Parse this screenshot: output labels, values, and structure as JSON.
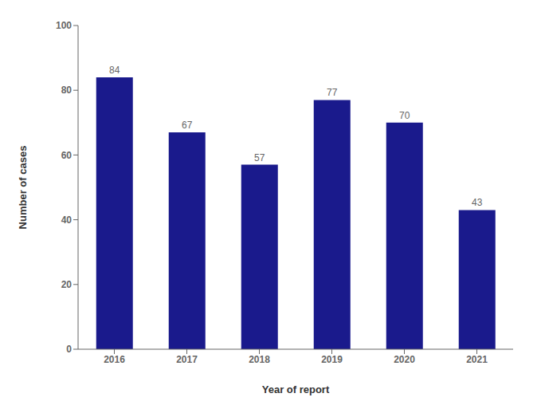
{
  "chart_data": {
    "type": "bar",
    "categories": [
      "2016",
      "2017",
      "2018",
      "2019",
      "2020",
      "2021"
    ],
    "values": [
      84,
      67,
      57,
      77,
      70,
      43
    ],
    "color": "#1a1a8c",
    "xlabel": "Year of report",
    "ylabel": "Number of cases",
    "ylim": [
      0,
      100
    ],
    "yticks": [
      0,
      20,
      40,
      60,
      80,
      100
    ],
    "data_labels": true,
    "grid": false
  }
}
